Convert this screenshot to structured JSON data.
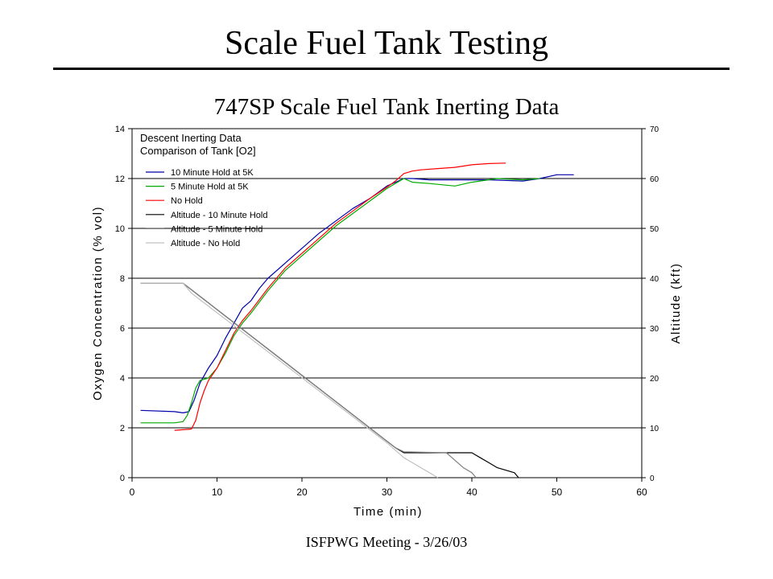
{
  "slide": {
    "title": "Scale Fuel Tank Testing",
    "footer": "ISFPWG Meeting - 3/26/03"
  },
  "chart_data": {
    "type": "line",
    "title": "747SP Scale Fuel Tank Inerting Data",
    "xlabel": "Time (min)",
    "ylabel": "Oxygen Concentration (% vol)",
    "y2label": "Altitude (kft)",
    "xlim": [
      0,
      60
    ],
    "ylim": [
      0,
      14
    ],
    "y2lim": [
      0,
      70
    ],
    "xticks": [
      "0",
      "10",
      "20",
      "30",
      "40",
      "50",
      "60"
    ],
    "yticks": [
      "0",
      "2",
      "4",
      "6",
      "8",
      "10",
      "12",
      "14"
    ],
    "y2ticks": [
      "0",
      "10",
      "20",
      "30",
      "40",
      "50",
      "60",
      "70"
    ],
    "grid": "horizontal",
    "legend": {
      "placement": "top-left",
      "heading": [
        "Descent Inerting Data",
        "Comparison of Tank [O2]"
      ]
    },
    "series": [
      {
        "name": "10 Minute Hold at 5K",
        "axis": "left",
        "color": "#0000aa",
        "x": [
          1,
          5,
          6,
          6.7,
          7.3,
          8,
          9,
          10,
          11,
          12,
          13,
          14,
          15,
          16,
          18,
          20,
          22,
          24,
          26,
          28,
          30,
          32,
          33,
          35,
          38,
          42,
          46,
          48,
          50,
          52
        ],
        "y": [
          2.7,
          2.65,
          2.6,
          2.65,
          3.1,
          3.8,
          4.4,
          4.9,
          5.6,
          6.2,
          6.8,
          7.1,
          7.6,
          8.0,
          8.6,
          9.2,
          9.8,
          10.3,
          10.8,
          11.2,
          11.7,
          12.0,
          12.0,
          11.95,
          11.95,
          11.95,
          11.9,
          12.0,
          12.15,
          12.15
        ]
      },
      {
        "name": "5 Minute Hold at 5K",
        "axis": "left",
        "color": "#00aa00",
        "x": [
          1,
          5,
          6,
          6.5,
          7,
          7.5,
          8,
          9,
          10,
          11,
          12,
          13,
          14,
          16,
          18,
          20,
          22,
          24,
          26,
          28,
          30,
          32,
          33,
          35,
          38,
          40,
          43,
          46,
          48
        ],
        "y": [
          2.2,
          2.2,
          2.25,
          2.5,
          3.0,
          3.6,
          3.9,
          4.0,
          4.4,
          5.0,
          5.7,
          6.2,
          6.6,
          7.5,
          8.3,
          8.9,
          9.5,
          10.1,
          10.6,
          11.1,
          11.6,
          12.0,
          11.85,
          11.8,
          11.7,
          11.85,
          12.0,
          11.95,
          12.0
        ]
      },
      {
        "name": "No Hold",
        "axis": "left",
        "color": "#ff0000",
        "x": [
          5,
          7,
          7.5,
          8,
          8.5,
          9,
          10,
          11,
          12,
          13,
          14,
          16,
          18,
          20,
          22,
          24,
          26,
          28,
          30,
          31,
          32,
          33,
          34,
          36,
          38,
          40,
          42,
          44
        ],
        "y": [
          1.9,
          1.95,
          2.3,
          3.0,
          3.5,
          3.9,
          4.4,
          5.1,
          5.8,
          6.3,
          6.7,
          7.6,
          8.4,
          9.0,
          9.6,
          10.2,
          10.7,
          11.2,
          11.65,
          11.9,
          12.2,
          12.3,
          12.35,
          12.4,
          12.45,
          12.55,
          12.6,
          12.62
        ]
      },
      {
        "name": "Altitude - 10 Minute Hold",
        "axis": "right",
        "color": "#000000",
        "x": [
          1,
          6,
          31,
          32,
          40,
          41,
          42,
          43,
          44,
          45,
          45.5
        ],
        "y": [
          39,
          39,
          6,
          5,
          5,
          4,
          3,
          2,
          1.5,
          1,
          0
        ]
      },
      {
        "name": "Altitude - 5 Minute Hold",
        "axis": "right",
        "color": "#808080",
        "x": [
          1,
          6,
          31,
          32,
          37,
          38,
          39,
          40,
          40.5
        ],
        "y": [
          39,
          39,
          6,
          5.2,
          5,
          3.5,
          2,
          1,
          0
        ]
      },
      {
        "name": "Altitude - No Hold",
        "axis": "right",
        "color": "#c0c0c0",
        "x": [
          1,
          6,
          7,
          30,
          31,
          32,
          33,
          34,
          35,
          36
        ],
        "y": [
          39,
          39,
          37,
          7,
          5.5,
          4,
          3,
          2,
          1,
          0
        ]
      }
    ]
  }
}
